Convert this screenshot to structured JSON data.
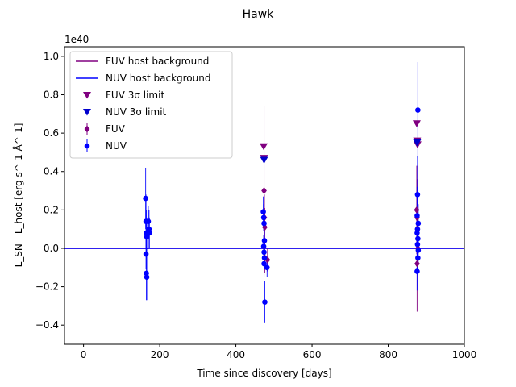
{
  "chart_data": {
    "type": "scatter",
    "title": "Hawk",
    "xlabel": "Time since discovery [days]",
    "ylabel": "L_SN - L_host [erg s^-1 Å^-1]",
    "y_offset_label": "1e40",
    "xlim": [
      -50,
      1000
    ],
    "ylim": [
      -0.5,
      1.05
    ],
    "x_ticks": [
      0,
      200,
      400,
      600,
      800,
      1000
    ],
    "y_ticks": [
      -0.4,
      -0.2,
      0.0,
      0.2,
      0.4,
      0.6,
      0.8,
      1.0
    ],
    "grid": false,
    "legend_position": "top-left",
    "legend": [
      {
        "label": "FUV host background",
        "kind": "line",
        "color": "#800080"
      },
      {
        "label": "NUV host background",
        "kind": "line",
        "color": "#0000ff"
      },
      {
        "label": "FUV 3σ limit",
        "kind": "triangle",
        "color": "#800080"
      },
      {
        "label": "NUV 3σ limit",
        "kind": "triangle",
        "color": "#0000cd"
      },
      {
        "label": "FUV",
        "kind": "diamond",
        "color": "#800080"
      },
      {
        "label": "NUV",
        "kind": "circle",
        "color": "#0000ff"
      }
    ],
    "series": [
      {
        "name": "FUV host background",
        "kind": "hline",
        "color": "#800080",
        "y": 0.0
      },
      {
        "name": "NUV host background",
        "kind": "hline",
        "color": "#0000ff",
        "y": 0.0
      },
      {
        "name": "FUV 3σ limit",
        "kind": "limit",
        "color": "#800080",
        "points": [
          {
            "x": 473,
            "y": 0.53
          },
          {
            "x": 474,
            "y": 0.47
          },
          {
            "x": 875,
            "y": 0.65
          },
          {
            "x": 876,
            "y": 0.56
          },
          {
            "x": 877,
            "y": 0.54
          }
        ]
      },
      {
        "name": "NUV 3σ limit",
        "kind": "limit",
        "color": "#0000cd",
        "points": [
          {
            "x": 474,
            "y": 0.46
          },
          {
            "x": 876,
            "y": 0.55
          }
        ]
      },
      {
        "name": "FUV",
        "kind": "errorbar",
        "color": "#800080",
        "marker": "diamond",
        "points": [
          {
            "x": 474,
            "y": 0.3,
            "err": 0.44
          },
          {
            "x": 475,
            "y": 0.16,
            "err": 0.12
          },
          {
            "x": 476,
            "y": 0.11,
            "err": 0.1
          },
          {
            "x": 476,
            "y": -0.05,
            "err": 0.08
          },
          {
            "x": 483,
            "y": -0.06,
            "err": 0.06
          },
          {
            "x": 875,
            "y": 0.2,
            "err": 0.23
          },
          {
            "x": 876,
            "y": 0.16,
            "err": 0.2
          },
          {
            "x": 877,
            "y": 0.1,
            "err": 0.15
          },
          {
            "x": 878,
            "y": 0.0,
            "err": 0.33
          },
          {
            "x": 876,
            "y": -0.08,
            "err": 0.25
          }
        ]
      },
      {
        "name": "NUV",
        "kind": "errorbar",
        "color": "#0000ff",
        "marker": "circle",
        "points": [
          {
            "x": 163,
            "y": 0.26,
            "err": 0.16
          },
          {
            "x": 164,
            "y": 0.14,
            "err": 0.14
          },
          {
            "x": 165,
            "y": 0.08,
            "err": 0.12
          },
          {
            "x": 166,
            "y": 0.06,
            "err": 0.1
          },
          {
            "x": 164,
            "y": -0.03,
            "err": 0.08
          },
          {
            "x": 165,
            "y": -0.13,
            "err": 0.14
          },
          {
            "x": 166,
            "y": -0.15,
            "err": 0.12
          },
          {
            "x": 170,
            "y": 0.14,
            "err": 0.08
          },
          {
            "x": 172,
            "y": 0.1,
            "err": 0.1
          },
          {
            "x": 173,
            "y": 0.08,
            "err": 0.08
          },
          {
            "x": 472,
            "y": 0.19,
            "err": 0.08
          },
          {
            "x": 473,
            "y": 0.16,
            "err": 0.07
          },
          {
            "x": 474,
            "y": 0.13,
            "err": 0.06
          },
          {
            "x": 475,
            "y": 0.04,
            "err": 0.07
          },
          {
            "x": 473,
            "y": 0.01,
            "err": 0.06
          },
          {
            "x": 474,
            "y": -0.02,
            "err": 0.05
          },
          {
            "x": 475,
            "y": -0.05,
            "err": 0.06
          },
          {
            "x": 474,
            "y": -0.08,
            "err": 0.07
          },
          {
            "x": 476,
            "y": -0.28,
            "err": 0.11
          },
          {
            "x": 482,
            "y": -0.1,
            "err": 0.05
          },
          {
            "x": 878,
            "y": 0.72,
            "err": 0.25
          },
          {
            "x": 877,
            "y": 0.28,
            "err": 0.2
          },
          {
            "x": 876,
            "y": 0.17,
            "err": 0.15
          },
          {
            "x": 879,
            "y": 0.13,
            "err": 0.1
          },
          {
            "x": 877,
            "y": 0.1,
            "err": 0.12
          },
          {
            "x": 876,
            "y": 0.08,
            "err": 0.1
          },
          {
            "x": 878,
            "y": 0.05,
            "err": 0.08
          },
          {
            "x": 877,
            "y": 0.02,
            "err": 0.08
          },
          {
            "x": 879,
            "y": -0.01,
            "err": 0.06
          },
          {
            "x": 878,
            "y": -0.05,
            "err": 0.07
          },
          {
            "x": 876,
            "y": -0.12,
            "err": 0.1
          }
        ]
      }
    ]
  }
}
